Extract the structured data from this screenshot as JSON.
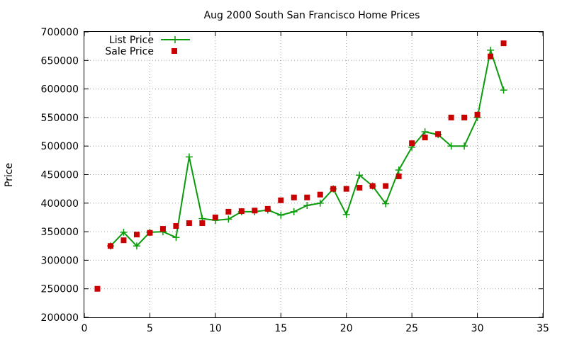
{
  "chart_data": {
    "type": "line",
    "title": "Aug 2000 South San Francisco Home Prices",
    "ylabel": "Price",
    "xlabel": "",
    "xlim": [
      0,
      35
    ],
    "ylim": [
      200000,
      700000
    ],
    "x_ticks": [
      "0",
      "5",
      "10",
      "15",
      "20",
      "25",
      "30",
      "35"
    ],
    "y_ticks": [
      "200000",
      "250000",
      "300000",
      "350000",
      "400000",
      "450000",
      "500000",
      "550000",
      "600000",
      "650000",
      "700000"
    ],
    "grid": true,
    "legend_position": "top-left",
    "series": [
      {
        "name": "List Price",
        "style": "line with plus markers",
        "color": "#0c9b0c",
        "x": [
          2,
          3,
          4,
          5,
          6,
          7,
          8,
          9,
          10,
          11,
          12,
          13,
          14,
          15,
          16,
          17,
          18,
          19,
          20,
          21,
          22,
          23,
          24,
          25,
          26,
          27,
          28,
          29,
          30,
          31,
          32
        ],
        "y": [
          325000,
          349000,
          325000,
          349000,
          350000,
          340000,
          481000,
          373000,
          370000,
          372000,
          385000,
          385000,
          388000,
          379000,
          385000,
          396000,
          400000,
          425000,
          380000,
          449000,
          430000,
          399000,
          458000,
          498000,
          525000,
          520000,
          500000,
          500000,
          550000,
          668000,
          598000
        ]
      },
      {
        "name": "Sale Price",
        "style": "square markers",
        "color": "#c80000",
        "x": [
          1,
          2,
          3,
          4,
          5,
          6,
          7,
          8,
          9,
          10,
          11,
          12,
          13,
          14,
          15,
          16,
          17,
          18,
          19,
          20,
          21,
          22,
          23,
          24,
          25,
          26,
          27,
          28,
          29,
          30,
          31,
          32
        ],
        "y": [
          250000,
          325000,
          335000,
          345000,
          348000,
          355000,
          360000,
          365000,
          365000,
          375000,
          385000,
          386000,
          387000,
          390000,
          405000,
          410000,
          410000,
          415000,
          425000,
          425000,
          427000,
          430000,
          430000,
          447000,
          505000,
          515000,
          521000,
          550000,
          550000,
          555000,
          657000,
          680000
        ]
      }
    ]
  }
}
